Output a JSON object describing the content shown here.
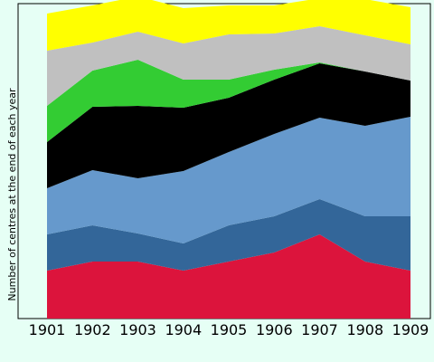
{
  "chart_data": {
    "type": "area",
    "stacked": true,
    "title": "",
    "xlabel": "",
    "ylabel": "Number of centres at the end of each year",
    "categories": [
      "1901",
      "1902",
      "1903",
      "1904",
      "1905",
      "1906",
      "1907",
      "1908",
      "1909"
    ],
    "legend": "none",
    "grid": false,
    "ylim": [
      0,
      350
    ],
    "series": [
      {
        "color": "#dc143c",
        "values": [
          53,
          63,
          63,
          53,
          63,
          73,
          93,
          63,
          53
        ]
      },
      {
        "color": "#336699",
        "values": [
          40,
          40,
          31,
          30,
          40,
          40,
          39,
          50,
          60
        ]
      },
      {
        "color": "#6699cc",
        "values": [
          51,
          61,
          61,
          80,
          81,
          91,
          90,
          100,
          110
        ]
      },
      {
        "color": "#000000",
        "values": [
          51,
          70,
          80,
          70,
          60,
          60,
          60,
          60,
          40
        ]
      },
      {
        "color": "#33cc33",
        "values": [
          40,
          40,
          51,
          31,
          20,
          11,
          1,
          0,
          0
        ]
      },
      {
        "color": "#c0c0c0",
        "values": [
          61,
          31,
          31,
          40,
          50,
          40,
          40,
          40,
          40
        ]
      },
      {
        "color": "#ffff00",
        "values": [
          41,
          41,
          39,
          39,
          32,
          31,
          31,
          40,
          41
        ]
      }
    ]
  }
}
